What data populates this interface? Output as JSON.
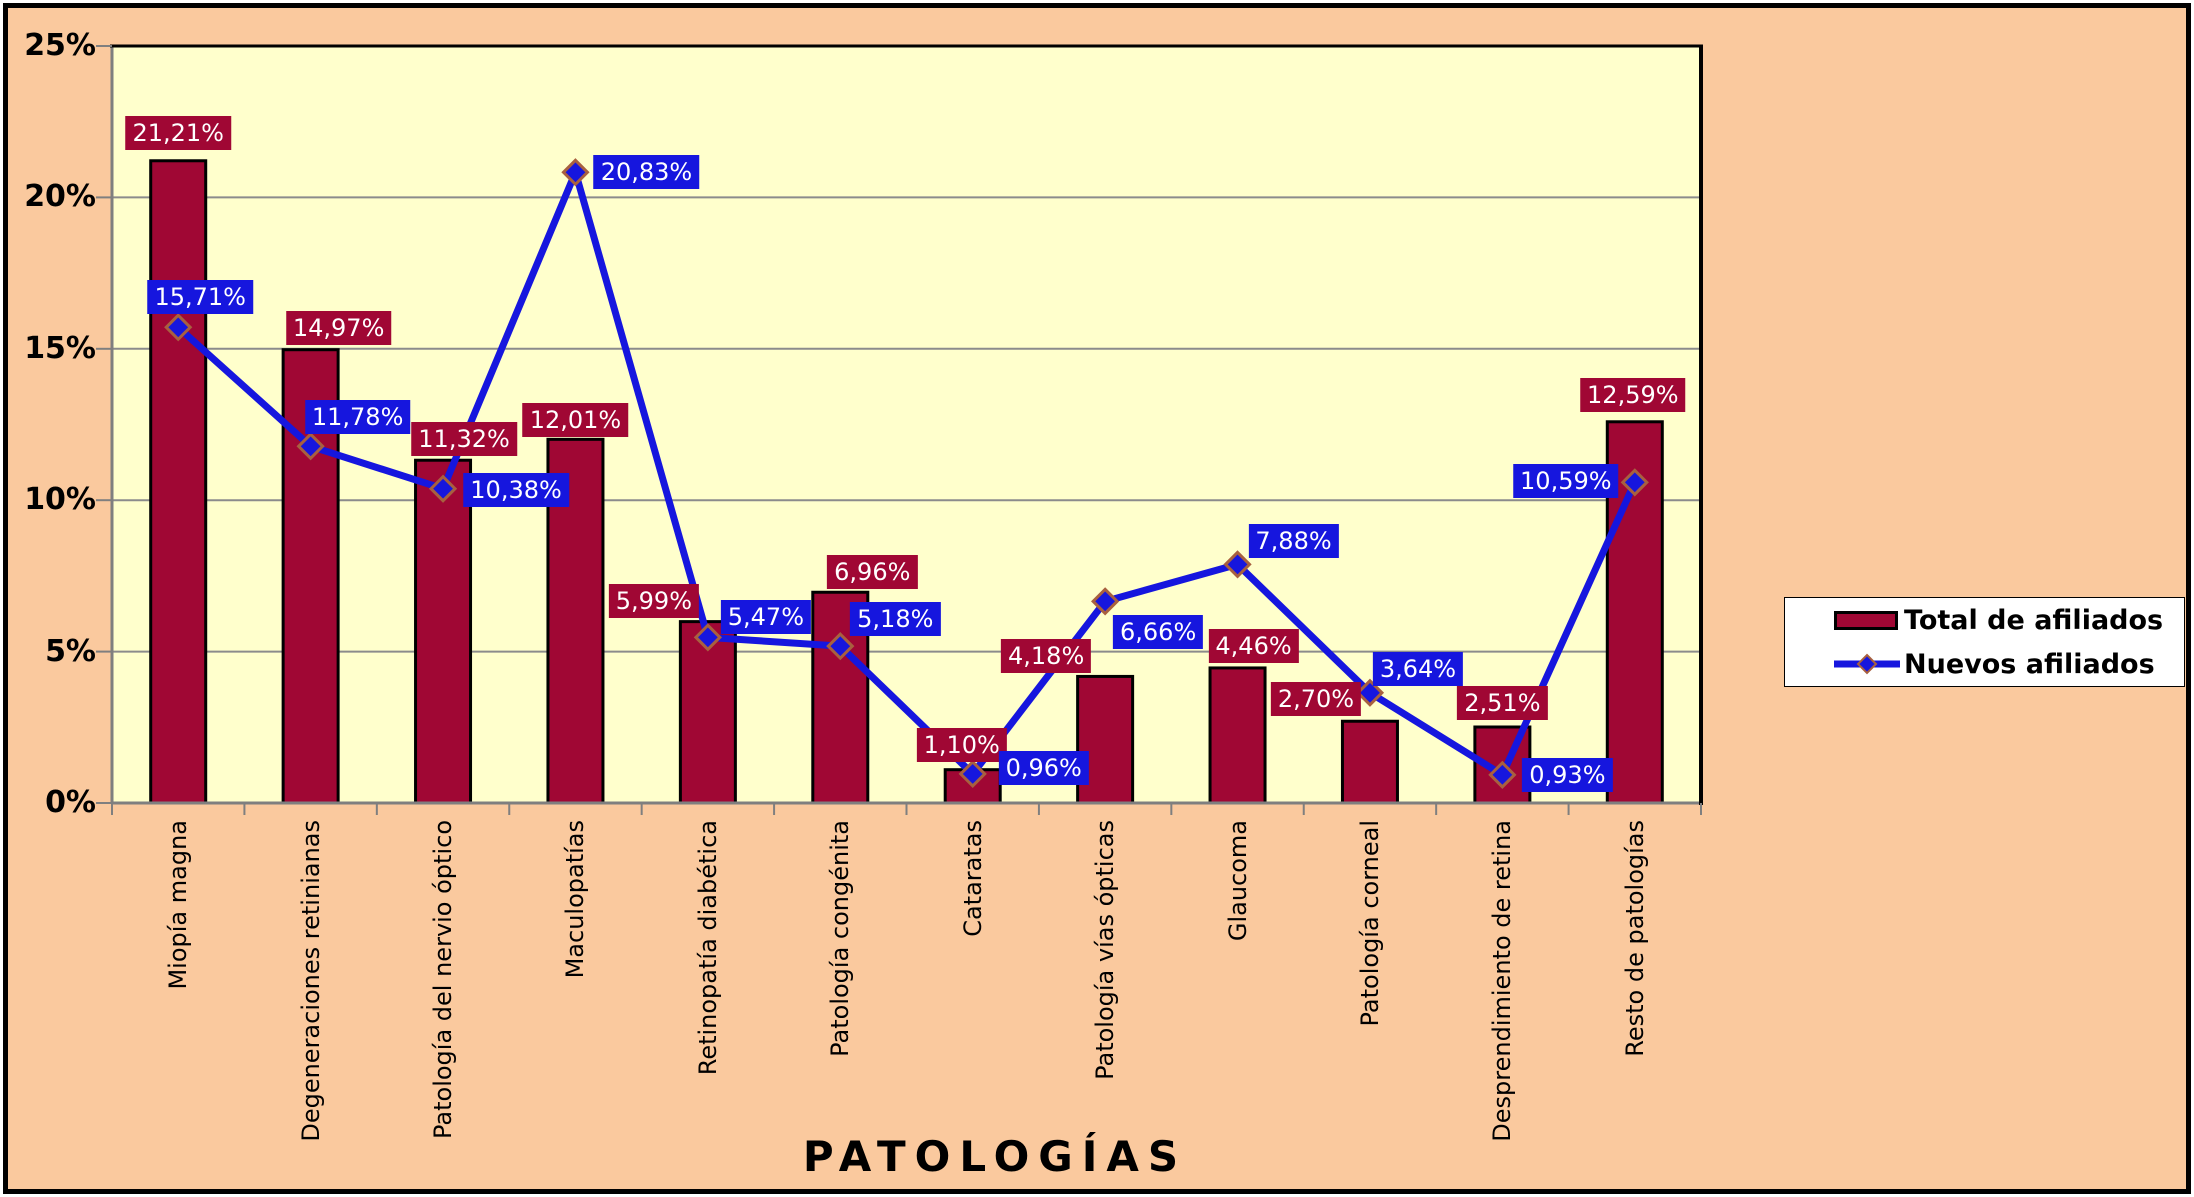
{
  "chart_data": {
    "type": "bar+line combo",
    "x_axis_title": "PATOLOGÍAS",
    "categories": [
      "Miopía magna",
      "Degeneraciones retinianas",
      "Patología del nervio óptico",
      "Maculopatías",
      "Retinopatía diabética",
      "Patología congénita",
      "Cataratas",
      "Patología vías ópticas",
      "Glaucoma",
      "Patología corneal",
      "Desprendimiento de retina",
      "Resto de patologías"
    ],
    "series": [
      {
        "name": "Total de afiliados",
        "type": "bar",
        "values": [
          21.21,
          14.97,
          11.32,
          12.01,
          5.99,
          6.96,
          1.1,
          4.18,
          4.46,
          2.7,
          2.51,
          12.59
        ],
        "labels": [
          "21,21%",
          "14,97%",
          "11,32%",
          "12,01%",
          "5,99%",
          "6,96%",
          "1,10%",
          "4,18%",
          "4,46%",
          "2,70%",
          "2,51%",
          "12,59%"
        ]
      },
      {
        "name": "Nuevos afiliados",
        "type": "line",
        "values": [
          15.71,
          11.78,
          10.38,
          20.83,
          5.47,
          5.18,
          0.96,
          6.66,
          7.88,
          3.64,
          0.93,
          10.59
        ],
        "labels": [
          "15,71%",
          "11,78%",
          "10,38%",
          "20,83%",
          "5,47%",
          "5,18%",
          "0,96%",
          "6,66%",
          "7,88%",
          "3,64%",
          "0,93%",
          "10,59%"
        ]
      }
    ],
    "y_ticks": [
      "0%",
      "5%",
      "10%",
      "15%",
      "20%",
      "25%"
    ],
    "y_tick_values": [
      0,
      5,
      10,
      15,
      20,
      25
    ],
    "ylim": [
      0,
      25
    ],
    "grid": true,
    "legend_position": "right",
    "label_offsets": {
      "bar_dx": [
        0,
        28,
        21,
        0,
        -54,
        32,
        -11,
        -59,
        16,
        -54,
        0,
        -2
      ],
      "bar_gap": [
        11,
        5,
        4,
        2,
        4,
        3,
        8,
        3,
        5,
        5,
        7,
        10
      ],
      "line": [
        [
          22,
          -30
        ],
        [
          47,
          -29
        ],
        [
          73,
          1
        ],
        [
          71,
          0
        ],
        [
          58,
          -20
        ],
        [
          55,
          -27
        ],
        [
          71,
          -6
        ],
        [
          53,
          31
        ],
        [
          56,
          -23
        ],
        [
          48,
          -24
        ],
        [
          65,
          0
        ],
        [
          -69,
          -1
        ]
      ]
    }
  },
  "colors": {
    "background": "#FAC99E",
    "plot_bg": "#FFFFCC",
    "bar": "#A00734",
    "line": "#1616DE",
    "marker_border": "#A8603F",
    "grid": "#8B8B8B",
    "axis": "#7F7F7F",
    "border_dark": "#000000",
    "label_text": "#FFFFFF",
    "legend_bg": "#FFFFFF"
  }
}
